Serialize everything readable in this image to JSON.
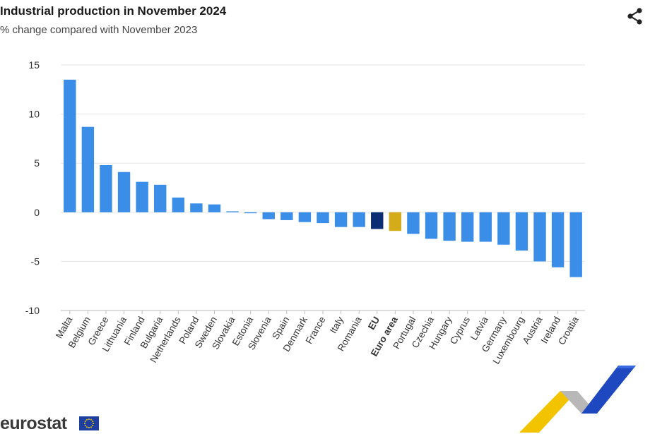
{
  "header": {
    "title": "Industrial production in November 2024",
    "subtitle": "% change compared with November 2023"
  },
  "brand": {
    "name": "eurostat"
  },
  "icons": {
    "share": "share-icon",
    "flag": "eu-flag-icon",
    "decoration": "chevron-stripes-decoration"
  },
  "colors": {
    "country": "#3b8ee8",
    "eu": "#0c2c74",
    "euro_area": "#d4ac19",
    "grid": "#e4e4e4",
    "axis": "#bbbbbb"
  },
  "chart_data": {
    "type": "bar",
    "title": "Industrial production in November 2024",
    "subtitle": "% change compared with November 2023",
    "xlabel": "",
    "ylabel": "",
    "ylim": [
      -10,
      15
    ],
    "yticks": [
      -10,
      -5,
      0,
      5,
      10,
      15
    ],
    "grid": true,
    "legend": "none",
    "categories": [
      "Malta",
      "Belgium",
      "Greece",
      "Lithuania",
      "Finland",
      "Bulgaria",
      "Netherlands",
      "Poland",
      "Sweden",
      "Slovakia",
      "Estonia",
      "Slovenia",
      "Spain",
      "Denmark",
      "France",
      "Italy",
      "Romania",
      "EU",
      "Euro area",
      "Portugal",
      "Czechia",
      "Hungary",
      "Cyprus",
      "Latvia",
      "Germany",
      "Luxembourg",
      "Austria",
      "Ireland",
      "Croatia"
    ],
    "values": [
      13.5,
      8.7,
      4.8,
      4.1,
      3.1,
      2.8,
      1.5,
      0.9,
      0.8,
      0.1,
      -0.1,
      -0.7,
      -0.8,
      -1.0,
      -1.1,
      -1.5,
      -1.5,
      -1.7,
      -1.9,
      -2.2,
      -2.7,
      -2.9,
      -3.0,
      -3.0,
      -3.3,
      -3.9,
      -5.0,
      -5.6,
      -6.6
    ],
    "highlight": {
      "EU": "eu",
      "Euro area": "euro_area"
    }
  }
}
